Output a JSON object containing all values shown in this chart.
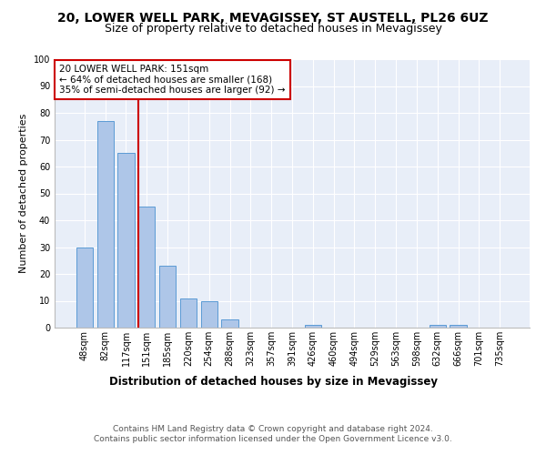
{
  "title": "20, LOWER WELL PARK, MEVAGISSEY, ST AUSTELL, PL26 6UZ",
  "subtitle": "Size of property relative to detached houses in Mevagissey",
  "xlabel": "Distribution of detached houses by size in Mevagissey",
  "ylabel": "Number of detached properties",
  "categories": [
    "48sqm",
    "82sqm",
    "117sqm",
    "151sqm",
    "185sqm",
    "220sqm",
    "254sqm",
    "288sqm",
    "323sqm",
    "357sqm",
    "391sqm",
    "426sqm",
    "460sqm",
    "494sqm",
    "529sqm",
    "563sqm",
    "598sqm",
    "632sqm",
    "666sqm",
    "701sqm",
    "735sqm"
  ],
  "values": [
    30,
    77,
    65,
    45,
    23,
    11,
    10,
    3,
    0,
    0,
    0,
    1,
    0,
    0,
    0,
    0,
    0,
    1,
    1,
    0,
    0
  ],
  "bar_color": "#aec6e8",
  "bar_edge_color": "#5b9bd5",
  "property_line_index": 3,
  "property_line_color": "#cc0000",
  "annotation_text": "20 LOWER WELL PARK: 151sqm\n← 64% of detached houses are smaller (168)\n35% of semi-detached houses are larger (92) →",
  "annotation_box_color": "#ffffff",
  "annotation_box_edge_color": "#cc0000",
  "ylim": [
    0,
    100
  ],
  "yticks": [
    0,
    10,
    20,
    30,
    40,
    50,
    60,
    70,
    80,
    90,
    100
  ],
  "footer_text": "Contains HM Land Registry data © Crown copyright and database right 2024.\nContains public sector information licensed under the Open Government Licence v3.0.",
  "background_color": "#e8eef8",
  "grid_color": "#ffffff",
  "title_fontsize": 10,
  "subtitle_fontsize": 9,
  "axis_label_fontsize": 8,
  "tick_fontsize": 7,
  "annotation_fontsize": 7.5,
  "footer_fontsize": 6.5
}
